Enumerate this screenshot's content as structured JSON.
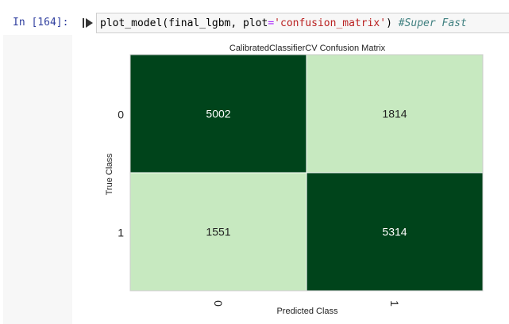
{
  "cell": {
    "prompt": "In [164]:",
    "code": {
      "fn": "plot_model",
      "open": "(",
      "arg1": "final_lgbm, plot",
      "eq": "=",
      "str": "'confusion_matrix'",
      "close": ")",
      "comment": "#Super Fast"
    }
  },
  "icons": {
    "run": "run-cell-icon"
  },
  "colors": {
    "dark_green": "#00441b",
    "light_green_high": "#a1d99b",
    "light_green_low": "#c7e9c0",
    "prompt_blue": "#303f9f"
  },
  "chart_data": {
    "type": "heatmap",
    "title": "CalibratedClassifierCV Confusion Matrix",
    "xlabel": "Predicted Class",
    "ylabel": "True Class",
    "x_categories": [
      "0",
      "1"
    ],
    "y_categories": [
      "0",
      "1"
    ],
    "values": [
      [
        5002,
        1814
      ],
      [
        1551,
        5314
      ]
    ],
    "colorscale": "Greens",
    "grid": false
  }
}
